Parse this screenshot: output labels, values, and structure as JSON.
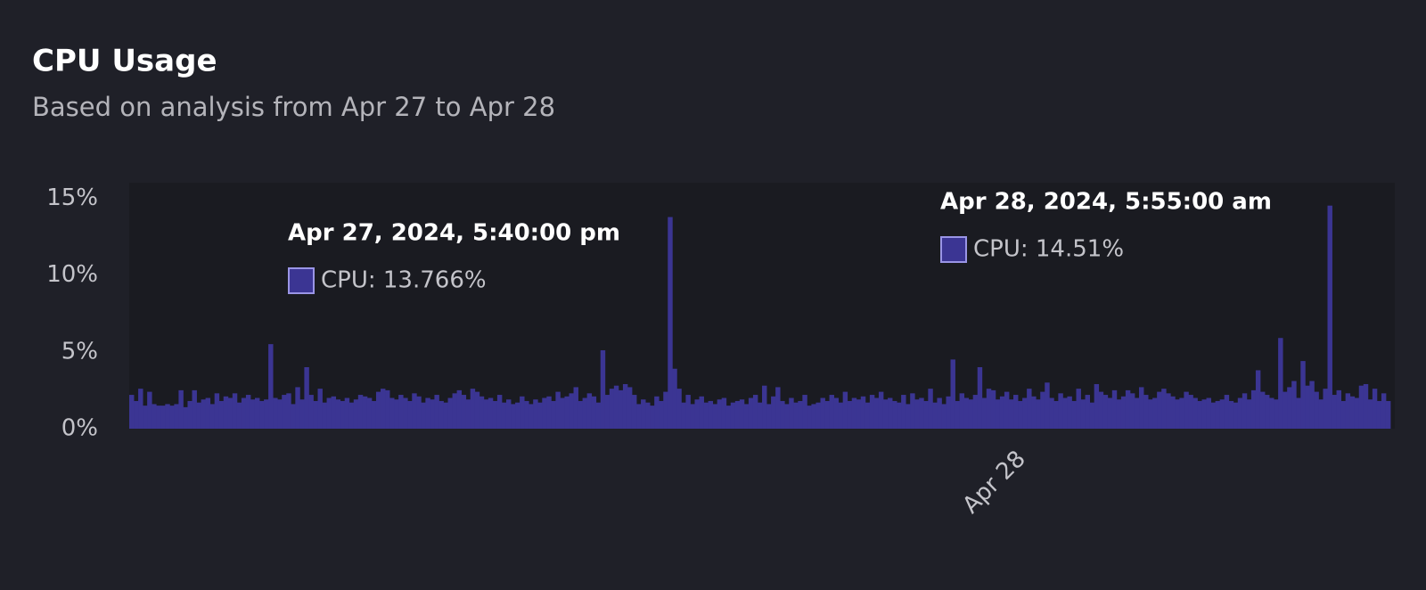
{
  "chart_data": {
    "type": "bar",
    "title": "CPU Usage",
    "subtitle": "Based on analysis from Apr 27 to Apr 28",
    "categories": [
      null,
      null,
      null,
      null,
      null,
      null,
      null,
      null,
      null,
      null,
      null,
      null,
      null,
      null,
      null,
      null,
      null,
      null,
      null,
      null,
      null,
      null,
      null,
      null,
      null,
      null,
      null,
      null,
      null,
      null,
      null,
      null,
      null,
      null,
      null,
      null,
      null,
      null,
      null,
      null,
      null,
      null,
      null,
      null,
      null,
      null,
      null,
      null,
      null,
      null,
      null,
      null,
      null,
      null,
      null,
      null,
      null,
      null,
      null,
      null,
      null,
      null,
      null,
      null,
      null,
      null,
      null,
      null,
      null,
      null,
      null,
      null,
      null,
      null,
      null,
      null,
      null,
      null,
      null,
      null,
      null,
      null,
      null,
      null,
      null,
      null,
      null,
      null,
      null,
      null,
      null,
      null,
      null,
      null,
      null,
      null,
      null,
      null,
      null,
      null,
      null,
      null,
      null,
      null,
      null,
      null,
      null,
      null,
      null,
      null,
      null,
      null,
      null,
      null,
      null,
      null,
      null,
      null,
      null,
      null,
      null,
      null,
      null,
      null,
      null,
      null,
      null,
      null,
      null,
      null,
      null,
      null,
      null,
      null,
      null,
      null,
      null,
      null,
      null,
      null,
      null,
      null,
      null,
      null,
      null,
      null,
      null,
      null,
      null,
      null,
      null,
      null,
      null,
      null,
      null,
      null,
      null,
      null,
      null,
      null,
      null,
      null,
      null,
      null,
      null,
      null,
      null,
      null,
      null,
      null,
      null,
      null,
      null,
      null,
      null,
      null,
      null,
      null,
      null,
      null,
      null,
      null,
      null,
      null,
      null,
      null,
      null,
      null,
      null,
      null,
      null,
      null,
      null,
      null,
      null,
      null,
      "Apr 28",
      null,
      null,
      null,
      null,
      null,
      null,
      null,
      null,
      null,
      null,
      null,
      null,
      null,
      null,
      null,
      null,
      null,
      null,
      null,
      null,
      null,
      null,
      null,
      null,
      null,
      null,
      null,
      null,
      null,
      null,
      null,
      null,
      null,
      null,
      null,
      null,
      null,
      null,
      null,
      null,
      null,
      null,
      null,
      null,
      null,
      null,
      null,
      null,
      null,
      null,
      null,
      null,
      null,
      null,
      null,
      null,
      null,
      null,
      null,
      null,
      null,
      null,
      null,
      null,
      null,
      null,
      null,
      null,
      null,
      null,
      null,
      null,
      null,
      null,
      null,
      null,
      null,
      null,
      null,
      null,
      null,
      null,
      null,
      null
    ],
    "series": [
      {
        "name": "CPU",
        "color": "#3b3593",
        "values": [
          2.2,
          1.8,
          2.6,
          1.5,
          2.4,
          1.6,
          1.5,
          1.5,
          1.6,
          1.5,
          1.6,
          2.5,
          1.4,
          1.8,
          2.5,
          1.7,
          1.9,
          2.0,
          1.6,
          2.3,
          1.8,
          2.1,
          2.0,
          2.3,
          1.7,
          2.0,
          2.2,
          1.9,
          2.0,
          1.8,
          1.9,
          5.5,
          2.0,
          1.9,
          2.2,
          2.3,
          1.6,
          2.7,
          1.9,
          4.0,
          2.2,
          1.8,
          2.6,
          1.7,
          2.0,
          2.1,
          1.9,
          1.8,
          2.0,
          1.7,
          1.9,
          2.2,
          2.1,
          2.0,
          1.8,
          2.4,
          2.6,
          2.5,
          2.0,
          1.9,
          2.2,
          2.0,
          1.8,
          2.3,
          2.1,
          1.7,
          2.0,
          1.9,
          2.2,
          1.8,
          1.7,
          2.0,
          2.3,
          2.5,
          2.2,
          1.9,
          2.6,
          2.4,
          2.1,
          1.9,
          2.0,
          1.8,
          2.2,
          1.7,
          1.9,
          1.6,
          1.7,
          2.1,
          1.8,
          1.6,
          1.9,
          1.7,
          2.0,
          2.1,
          1.8,
          2.4,
          2.0,
          2.1,
          2.3,
          2.7,
          1.8,
          2.0,
          2.3,
          2.1,
          1.7,
          5.1,
          2.2,
          2.6,
          2.8,
          2.5,
          2.9,
          2.7,
          2.2,
          1.6,
          1.9,
          1.7,
          1.5,
          2.1,
          1.8,
          2.4,
          13.766,
          3.9,
          2.6,
          1.7,
          2.2,
          1.6,
          1.9,
          2.1,
          1.7,
          1.8,
          1.6,
          1.9,
          2.0,
          1.5,
          1.7,
          1.8,
          1.9,
          1.6,
          2.0,
          2.2,
          1.7,
          2.8,
          1.6,
          2.1,
          2.7,
          1.8,
          1.6,
          2.0,
          1.7,
          1.8,
          2.2,
          1.5,
          1.6,
          1.7,
          2.0,
          1.8,
          2.2,
          2.0,
          1.7,
          2.4,
          1.8,
          2.0,
          1.9,
          2.1,
          1.7,
          2.2,
          2.0,
          2.4,
          1.9,
          2.0,
          1.8,
          1.7,
          2.2,
          1.6,
          2.3,
          1.9,
          2.0,
          1.8,
          2.6,
          1.7,
          2.0,
          1.6,
          2.1,
          4.5,
          1.8,
          2.3,
          2.0,
          1.9,
          2.2,
          4.0,
          2.0,
          2.6,
          2.5,
          1.9,
          2.1,
          2.4,
          1.9,
          2.2,
          1.8,
          2.0,
          2.6,
          2.1,
          1.9,
          2.4,
          3.0,
          2.0,
          1.8,
          2.3,
          2.0,
          2.1,
          1.8,
          2.6,
          1.9,
          2.2,
          1.7,
          2.9,
          2.4,
          2.2,
          2.0,
          2.5,
          1.9,
          2.1,
          2.5,
          2.3,
          2.0,
          2.7,
          2.2,
          1.9,
          2.0,
          2.4,
          2.6,
          2.3,
          2.1,
          1.9,
          2.0,
          2.4,
          2.2,
          2.0,
          1.8,
          1.9,
          2.0,
          1.7,
          1.8,
          1.9,
          2.2,
          1.8,
          1.7,
          2.0,
          2.3,
          1.9,
          2.5,
          3.8,
          2.4,
          2.2,
          2.0,
          1.9,
          5.9,
          2.4,
          2.7,
          3.1,
          2.0,
          4.4,
          2.8,
          3.1,
          2.4,
          1.9,
          2.6,
          14.51,
          2.2,
          2.5,
          1.8,
          2.3,
          2.1,
          2.0,
          2.8,
          2.9,
          1.9,
          2.6,
          1.8,
          2.3,
          1.8
        ]
      }
    ],
    "ylim": [
      0,
      16
    ],
    "yticks": [
      {
        "value": 0,
        "label": "0%"
      },
      {
        "value": 5,
        "label": "5%"
      },
      {
        "value": 10,
        "label": "10%"
      },
      {
        "value": 15,
        "label": "15%"
      }
    ],
    "grid": false,
    "annotations": [
      {
        "title": "Apr 27, 2024, 5:40:00 pm",
        "text": "CPU: 13.766%"
      },
      {
        "title": "Apr 28, 2024, 5:55:00 am",
        "text": "CPU: 14.51%"
      }
    ]
  }
}
